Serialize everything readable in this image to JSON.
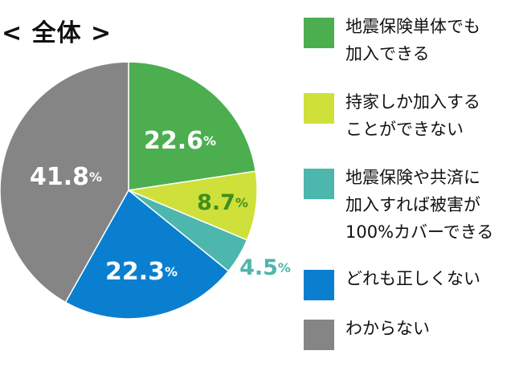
{
  "title": "< 全体 >",
  "chart_data": {
    "type": "pie",
    "title": "< 全体 >",
    "slices": [
      {
        "label": "地震保険単体でも加入できる",
        "legend": "地震保険単体でも\n加入できる",
        "value": 22.6,
        "value_text": "22.6",
        "color": "#4cae4f",
        "label_color": "#ffffff"
      },
      {
        "label": "持家しか加入することができない",
        "legend": "持家しか加入する\nことができない",
        "value": 8.7,
        "value_text": "8.7",
        "color": "#cfe03a",
        "label_color": "#3f8f1f"
      },
      {
        "label": "地震保険や共済に加入すれば被害が100%カバーできる",
        "legend": "地震保険や共済に\n加入すれば被害が\n100%カバーできる",
        "value": 4.5,
        "value_text": "4.5",
        "color": "#4db6ad",
        "label_color": "#4db6ad"
      },
      {
        "label": "どれも正しくない",
        "legend": "どれも正しくない",
        "value": 22.3,
        "value_text": "22.3",
        "color": "#0a7fd0",
        "label_color": "#ffffff"
      },
      {
        "label": "わからない",
        "legend": "わからない",
        "value": 41.8,
        "value_text": "41.8",
        "color": "#858585",
        "label_color": "#ffffff"
      }
    ],
    "unit": "%",
    "start_angle_deg": 0,
    "direction": "clockwise",
    "legend_position": "right"
  }
}
